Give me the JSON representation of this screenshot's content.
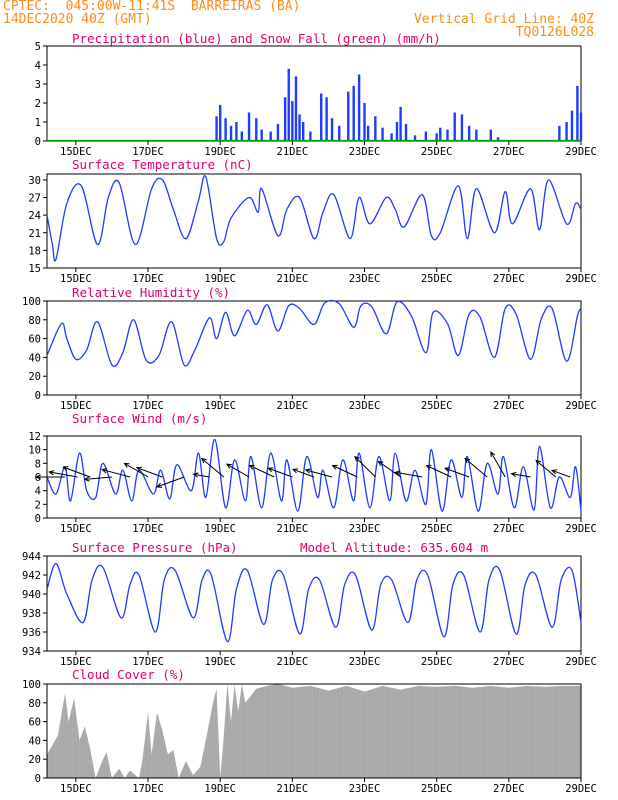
{
  "header": {
    "source": "CPTEC:",
    "coords": "045:00W-11:41S",
    "station": "BARREIRAS (BA)",
    "run_time": "14DEC2020 40Z (GMT)",
    "grid_note": "Vertical Grid Line: 40Z",
    "model_code": "TQ0126L028"
  },
  "colors": {
    "header": "#ff8c1a",
    "title": "#e0006e",
    "line": "#1e3cff",
    "precip": "#1e3cff",
    "snow": "#00a000",
    "cloud": "#a6a6a6"
  },
  "x_dates": [
    "15DEC",
    "17DEC",
    "19DEC",
    "21DEC",
    "23DEC",
    "25DEC",
    "27DEC",
    "29DEC"
  ],
  "chart_data": [
    {
      "type": "bar",
      "title": "Precipitation (blue) and Snow Fall (green) (mm/h)",
      "ylim": [
        0,
        5
      ],
      "yticks": [
        0,
        1,
        2,
        3,
        4,
        5
      ],
      "xlim_days": [
        14.2,
        29.0
      ],
      "series": [
        {
          "name": "Precipitation",
          "points": [
            [
              18.9,
              1.3
            ],
            [
              19.0,
              1.9
            ],
            [
              19.15,
              1.2
            ],
            [
              19.3,
              0.8
            ],
            [
              19.45,
              1.0
            ],
            [
              19.6,
              0.5
            ],
            [
              19.8,
              1.5
            ],
            [
              20.0,
              1.2
            ],
            [
              20.15,
              0.6
            ],
            [
              20.4,
              0.5
            ],
            [
              20.6,
              0.9
            ],
            [
              20.8,
              2.3
            ],
            [
              20.9,
              3.8
            ],
            [
              21.0,
              2.1
            ],
            [
              21.1,
              3.4
            ],
            [
              21.2,
              1.4
            ],
            [
              21.3,
              1.0
            ],
            [
              21.5,
              0.5
            ],
            [
              21.8,
              2.5
            ],
            [
              21.95,
              2.3
            ],
            [
              22.1,
              1.2
            ],
            [
              22.3,
              0.8
            ],
            [
              22.55,
              2.6
            ],
            [
              22.7,
              2.9
            ],
            [
              22.85,
              3.5
            ],
            [
              23.0,
              2.0
            ],
            [
              23.1,
              0.8
            ],
            [
              23.3,
              1.3
            ],
            [
              23.5,
              0.7
            ],
            [
              23.75,
              0.4
            ],
            [
              23.9,
              1.0
            ],
            [
              24.0,
              1.8
            ],
            [
              24.15,
              0.9
            ],
            [
              24.4,
              0.3
            ],
            [
              24.7,
              0.5
            ],
            [
              25.0,
              0.4
            ],
            [
              25.1,
              0.7
            ],
            [
              25.3,
              0.6
            ],
            [
              25.5,
              1.5
            ],
            [
              25.7,
              1.4
            ],
            [
              25.9,
              0.8
            ],
            [
              26.1,
              0.6
            ],
            [
              26.5,
              0.6
            ],
            [
              26.7,
              0.2
            ],
            [
              28.4,
              0.8
            ],
            [
              28.6,
              1.0
            ],
            [
              28.75,
              1.6
            ],
            [
              28.9,
              2.9
            ],
            [
              29.0,
              1.5
            ]
          ]
        },
        {
          "name": "Snow Fall",
          "points": []
        }
      ]
    },
    {
      "type": "line",
      "title": "Surface Temperature (nC)",
      "ylim": [
        15,
        31
      ],
      "yticks": [
        15,
        18,
        21,
        24,
        27,
        30
      ],
      "xlim_days": [
        14.2,
        29.0
      ],
      "x": [
        14.2,
        14.35,
        14.45,
        14.75,
        15.15,
        15.6,
        15.9,
        16.2,
        16.65,
        17.1,
        17.4,
        17.7,
        18.05,
        18.4,
        18.6,
        18.9,
        19.1,
        19.3,
        19.8,
        20.05,
        20.15,
        20.6,
        20.85,
        21.2,
        21.6,
        21.85,
        22.15,
        22.6,
        22.85,
        23.15,
        23.6,
        23.85,
        24.1,
        24.6,
        24.85,
        25.1,
        25.6,
        25.85,
        26.1,
        26.6,
        26.9,
        27.1,
        27.6,
        27.85,
        28.1,
        28.6,
        28.85,
        29.0
      ],
      "y": [
        24.0,
        19.0,
        16.5,
        26.0,
        29.0,
        19.0,
        27.0,
        29.5,
        19.0,
        28.5,
        30.0,
        25.0,
        20.0,
        26.5,
        30.5,
        20.0,
        19.5,
        23.5,
        27.0,
        24.5,
        28.5,
        20.5,
        25.0,
        27.0,
        20.0,
        24.5,
        27.5,
        20.0,
        27.0,
        22.5,
        27.0,
        25.0,
        22.0,
        27.5,
        20.5,
        21.0,
        29.0,
        20.0,
        28.5,
        21.0,
        28.0,
        22.5,
        28.5,
        21.5,
        30.0,
        22.5,
        26.0,
        25.0
      ]
    },
    {
      "type": "line",
      "title": "Relative Humidity (%)",
      "ylim": [
        0,
        100
      ],
      "yticks": [
        0,
        20,
        40,
        60,
        80,
        100
      ],
      "xlim_days": [
        14.2,
        29.0
      ],
      "x": [
        14.2,
        14.6,
        14.75,
        15.0,
        15.3,
        15.6,
        16.0,
        16.3,
        16.6,
        16.95,
        17.3,
        17.65,
        18.0,
        18.3,
        18.7,
        18.9,
        19.15,
        19.4,
        19.75,
        20.0,
        20.3,
        20.6,
        20.9,
        21.2,
        21.6,
        21.9,
        22.3,
        22.7,
        22.9,
        23.2,
        23.6,
        23.9,
        24.3,
        24.7,
        24.9,
        25.3,
        25.6,
        25.9,
        26.2,
        26.6,
        26.9,
        27.2,
        27.6,
        27.9,
        28.2,
        28.6,
        28.9,
        29.0
      ],
      "y": [
        42.0,
        76.0,
        60.0,
        38.0,
        48.0,
        78.0,
        32.0,
        45.0,
        80.0,
        37.0,
        42.0,
        78.0,
        32.0,
        48.0,
        82.0,
        60.0,
        88.0,
        63.0,
        90.0,
        75.0,
        96.0,
        68.0,
        95.0,
        92.0,
        75.0,
        98.0,
        97.0,
        72.0,
        95.0,
        94.0,
        65.0,
        99.0,
        84.0,
        45.0,
        88.0,
        76.0,
        42.0,
        86.0,
        83.0,
        40.0,
        92.0,
        86.0,
        38.0,
        81.0,
        92.0,
        36.0,
        84.0,
        92.0
      ]
    },
    {
      "type": "line",
      "title": "Surface Wind (m/s)",
      "ylim": [
        0,
        12
      ],
      "yticks": [
        0,
        2,
        4,
        6,
        8,
        10,
        12
      ],
      "xlim_days": [
        14.2,
        29.0
      ],
      "x": [
        14.2,
        14.45,
        14.7,
        14.85,
        15.1,
        15.3,
        15.55,
        15.75,
        16.1,
        16.3,
        16.55,
        16.75,
        17.15,
        17.35,
        17.6,
        17.8,
        18.2,
        18.4,
        18.6,
        18.85,
        19.15,
        19.4,
        19.7,
        19.85,
        20.15,
        20.4,
        20.7,
        20.85,
        21.15,
        21.4,
        21.7,
        21.85,
        22.15,
        22.4,
        22.7,
        22.85,
        23.15,
        23.4,
        23.7,
        23.85,
        24.15,
        24.4,
        24.7,
        24.85,
        25.15,
        25.4,
        25.7,
        25.85,
        26.15,
        26.4,
        26.7,
        26.85,
        27.15,
        27.4,
        27.7,
        27.85,
        28.15,
        28.4,
        28.7,
        28.85,
        29.0
      ],
      "y": [
        6.0,
        3.5,
        7.5,
        2.5,
        9.5,
        4.0,
        3.0,
        8.0,
        3.5,
        7.0,
        2.5,
        7.0,
        3.5,
        7.0,
        2.8,
        7.8,
        4.0,
        9.5,
        3.0,
        11.5,
        1.5,
        8.5,
        2.5,
        9.0,
        1.5,
        9.5,
        2.5,
        8.5,
        1.0,
        9.0,
        3.0,
        7.0,
        1.5,
        8.5,
        2.5,
        9.5,
        1.5,
        9.0,
        2.5,
        9.5,
        2.5,
        7.0,
        2.0,
        10.0,
        1.0,
        8.5,
        3.0,
        9.0,
        1.0,
        8.0,
        3.5,
        9.0,
        1.5,
        7.5,
        1.2,
        10.5,
        1.5,
        6.0,
        3.0,
        7.5,
        1.0
      ],
      "arrows": [
        [
          14.7,
          9,
          180
        ],
        [
          15.05,
          9,
          190
        ],
        [
          15.4,
          9,
          200
        ],
        [
          16.0,
          8.5,
          175
        ],
        [
          16.5,
          9,
          195
        ],
        [
          17.0,
          8.5,
          210
        ],
        [
          17.4,
          8.5,
          200
        ],
        [
          18.0,
          9,
          160
        ],
        [
          18.7,
          5,
          190
        ],
        [
          19.1,
          9,
          220
        ],
        [
          19.8,
          8,
          210
        ],
        [
          20.5,
          8.5,
          205
        ],
        [
          21.0,
          8,
          200
        ],
        [
          21.6,
          7,
          200
        ],
        [
          22.1,
          8.5,
          195
        ],
        [
          22.8,
          8.5,
          205
        ],
        [
          23.3,
          9,
          225
        ],
        [
          24.0,
          8.5,
          215
        ],
        [
          24.6,
          8.5,
          190
        ],
        [
          25.4,
          8.5,
          205
        ],
        [
          25.9,
          8,
          200
        ],
        [
          26.4,
          9,
          220
        ],
        [
          26.9,
          9,
          240
        ],
        [
          27.6,
          6,
          190
        ],
        [
          28.3,
          8,
          220
        ],
        [
          28.7,
          6,
          200
        ]
      ]
    },
    {
      "type": "line",
      "title": "Surface Pressure (hPa)",
      "annotation": "Model Altitude: 635.604 m",
      "ylim": [
        934,
        944
      ],
      "yticks": [
        934,
        936,
        938,
        940,
        942,
        944
      ],
      "xlim_days": [
        14.2,
        29.0
      ],
      "x": [
        14.2,
        14.45,
        14.75,
        15.2,
        15.45,
        15.75,
        16.25,
        16.5,
        16.75,
        17.2,
        17.45,
        17.75,
        18.25,
        18.5,
        18.75,
        19.2,
        19.45,
        19.75,
        20.2,
        20.45,
        20.75,
        21.2,
        21.45,
        21.75,
        22.2,
        22.45,
        22.75,
        23.2,
        23.45,
        23.75,
        24.2,
        24.45,
        24.75,
        25.2,
        25.45,
        25.75,
        26.2,
        26.45,
        26.75,
        27.2,
        27.45,
        27.75,
        28.2,
        28.45,
        28.75,
        29.0
      ],
      "y": [
        940.5,
        943.2,
        940.0,
        937.0,
        941.5,
        942.8,
        937.5,
        941.0,
        942.0,
        936.0,
        941.5,
        942.5,
        937.5,
        941.5,
        942.0,
        935.0,
        940.5,
        942.5,
        936.8,
        941.5,
        942.0,
        935.8,
        940.5,
        941.5,
        936.5,
        941.0,
        942.0,
        936.2,
        941.0,
        941.5,
        937.0,
        941.5,
        942.0,
        935.5,
        941.0,
        942.0,
        936.0,
        941.5,
        942.5,
        935.8,
        941.0,
        942.0,
        936.5,
        941.5,
        942.5,
        937.0
      ]
    },
    {
      "type": "area",
      "title": "Cloud Cover (%)",
      "ylim": [
        0,
        100
      ],
      "yticks": [
        0,
        20,
        40,
        60,
        80,
        100
      ],
      "xlim_days": [
        14.2,
        29.0
      ],
      "x": [
        14.2,
        14.5,
        14.7,
        14.8,
        14.95,
        15.1,
        15.25,
        15.4,
        15.55,
        15.7,
        15.85,
        16.0,
        16.2,
        16.35,
        16.5,
        16.65,
        16.75,
        16.85,
        17.0,
        17.1,
        17.25,
        17.4,
        17.55,
        17.7,
        17.85,
        18.05,
        18.25,
        18.45,
        18.6,
        18.8,
        18.9,
        19.0,
        19.1,
        19.2,
        19.3,
        19.4,
        19.5,
        19.6,
        19.7,
        20.0,
        20.3,
        20.6,
        21.0,
        21.5,
        22.0,
        22.5,
        23.0,
        23.5,
        24.0,
        24.5,
        25.0,
        25.5,
        26.0,
        26.5,
        27.0,
        27.5,
        28.0,
        28.5,
        29.0
      ],
      "y": [
        25,
        45,
        90,
        60,
        85,
        40,
        55,
        30,
        0,
        15,
        28,
        0,
        10,
        0,
        8,
        3,
        0,
        20,
        70,
        25,
        70,
        50,
        25,
        30,
        0,
        18,
        3,
        12,
        40,
        80,
        95,
        0,
        45,
        100,
        60,
        100,
        70,
        100,
        80,
        95,
        98,
        100,
        96,
        98,
        93,
        98,
        92,
        98,
        94,
        98,
        97,
        98,
        96,
        98,
        96,
        98,
        97,
        98,
        98
      ]
    }
  ]
}
